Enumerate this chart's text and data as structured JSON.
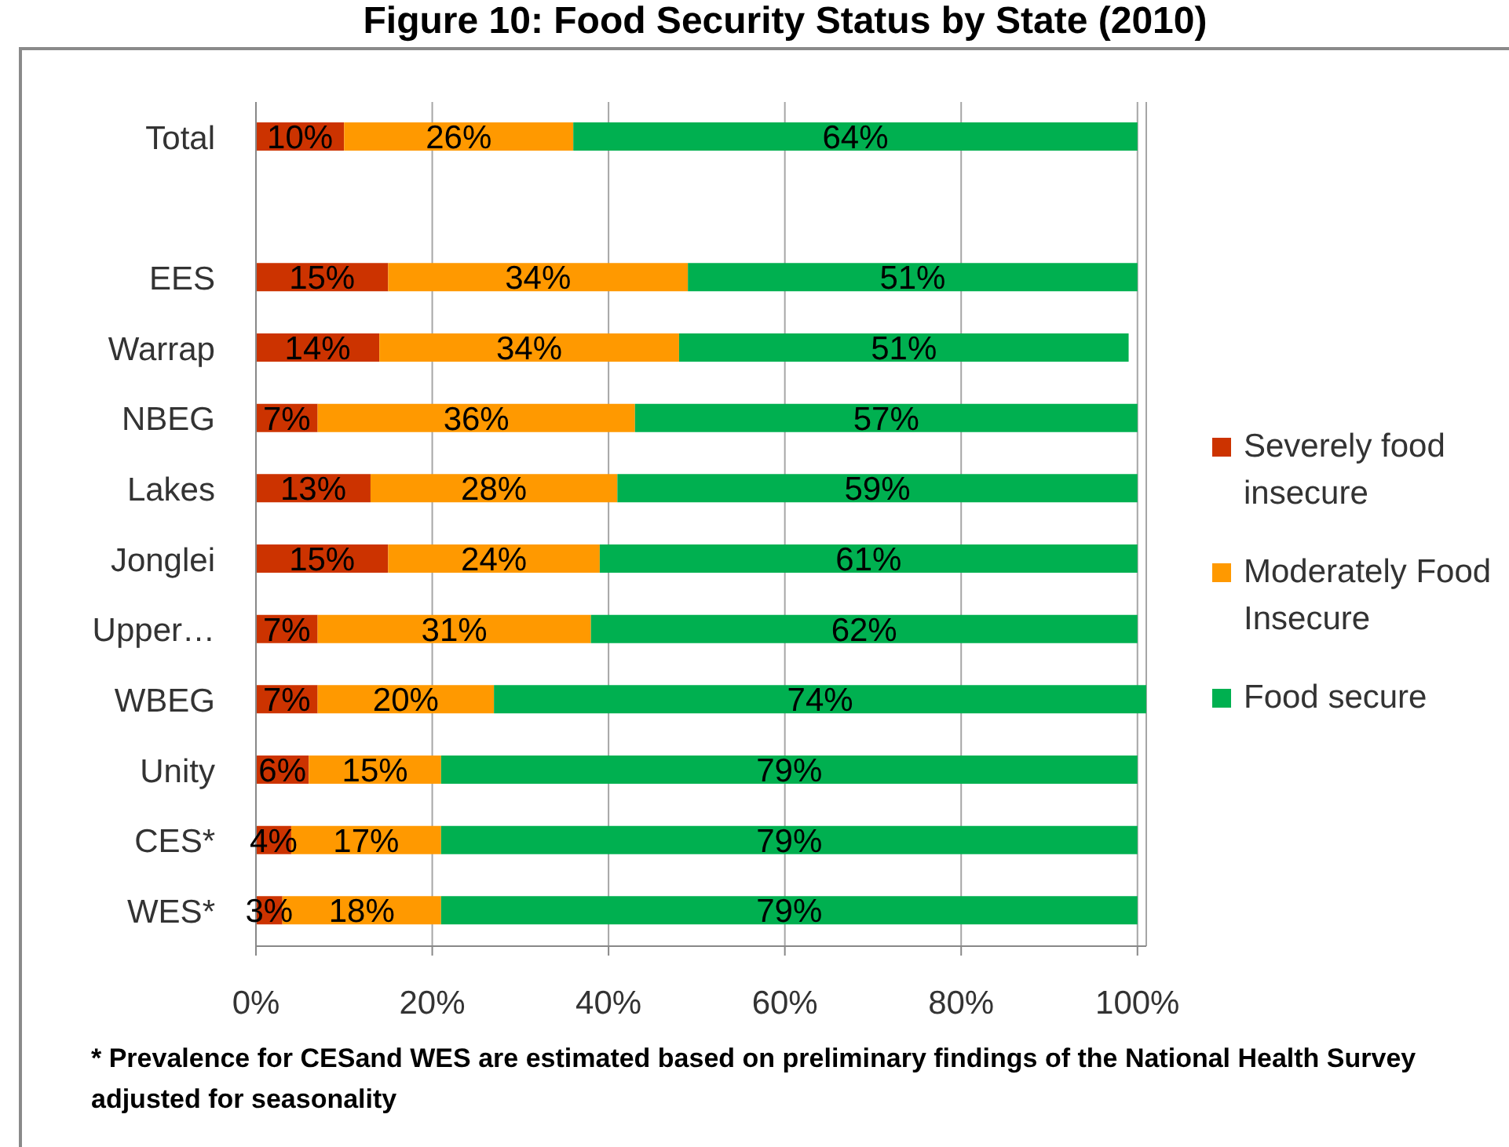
{
  "chart_data": {
    "type": "bar",
    "orientation": "horizontal",
    "stacked": true,
    "title": "Figure 10: Food Security Status by State (2010)",
    "categories": [
      "Total",
      null,
      "EES",
      "Warrap",
      "NBEG",
      "Lakes",
      "Jonglei",
      "Upper…",
      "WBEG",
      "Unity",
      "CES*",
      "WES*"
    ],
    "series": [
      {
        "name": "Severely food insecure",
        "color": "#cc3300",
        "values": [
          10,
          null,
          15,
          14,
          7,
          13,
          15,
          7,
          7,
          6,
          4,
          3
        ],
        "value_labels": [
          "10%",
          null,
          "15%",
          "14%",
          "7%",
          "13%",
          "15%",
          "7%",
          "7%",
          "6%",
          "4%",
          "3%"
        ]
      },
      {
        "name": "Moderately Food Insecure",
        "color": "#ff9900",
        "values": [
          26,
          null,
          34,
          34,
          36,
          28,
          24,
          31,
          20,
          15,
          17,
          18
        ],
        "value_labels": [
          "26%",
          null,
          "34%",
          "34%",
          "36%",
          "28%",
          "24%",
          "31%",
          "20%",
          "15%",
          "17%",
          "18%"
        ]
      },
      {
        "name": "Food secure",
        "color": "#00b050",
        "values": [
          64,
          null,
          51,
          51,
          57,
          59,
          61,
          62,
          74,
          79,
          79,
          79
        ],
        "value_labels": [
          "64%",
          null,
          "51%",
          "51%",
          "57%",
          "59%",
          "61%",
          "62%",
          "74%",
          "79%",
          "79%",
          "79%"
        ]
      }
    ],
    "xlim": [
      0,
      101
    ],
    "xticks": [
      {
        "value": 0,
        "label": "0%"
      },
      {
        "value": 20,
        "label": "20%"
      },
      {
        "value": 40,
        "label": "40%"
      },
      {
        "value": 60,
        "label": "60%"
      },
      {
        "value": 80,
        "label": "80%"
      },
      {
        "value": 100,
        "label": "100%"
      }
    ],
    "grid": "x",
    "legend": "right",
    "annotations": [
      "* Prevalence for CESand WES are estimated based on preliminary findings of the National Health Survey adjusted for seasonality"
    ]
  }
}
